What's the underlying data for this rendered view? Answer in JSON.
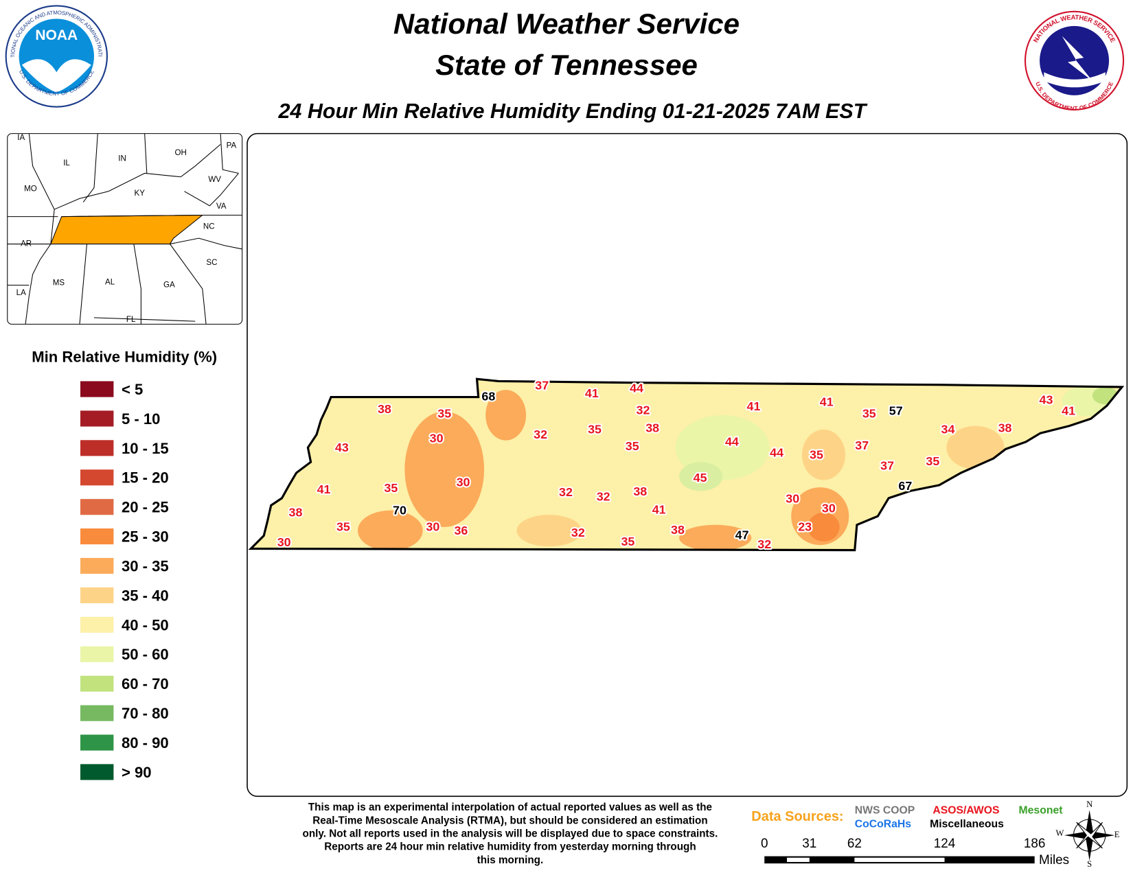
{
  "header": {
    "title_line1": "National Weather Service",
    "title_line2": "State of Tennessee",
    "subtitle": "24 Hour Min Relative Humidity Ending 01-21-2025 7AM EST"
  },
  "logos": {
    "noaa_center": "NOAA",
    "noaa_ring_top": "NATIONAL OCEANIC AND ATMOSPHERIC ADMINISTRATION",
    "noaa_ring_bottom": "U.S. DEPARTMENT OF COMMERCE",
    "nws_ring_top": "NATIONAL WEATHER SERVICE",
    "nws_ring_bottom": "U.S. DEPARTMENT OF COMMERCE"
  },
  "inset_labels": [
    "IA",
    "IL",
    "IN",
    "OH",
    "PA",
    "MO",
    "KY",
    "WV",
    "VA",
    "NC",
    "AR",
    "SC",
    "MS",
    "AL",
    "GA",
    "LA",
    "FL"
  ],
  "legend": {
    "title": "Min Relative Humidity (%)",
    "items": [
      {
        "label": "< 5",
        "color": "#8b0a1e"
      },
      {
        "label": "5 - 10",
        "color": "#a51c24"
      },
      {
        "label": "10 - 15",
        "color": "#be2e28"
      },
      {
        "label": "15 - 20",
        "color": "#d4482f"
      },
      {
        "label": "20 - 25",
        "color": "#e06a44"
      },
      {
        "label": "25 - 30",
        "color": "#f98b3c"
      },
      {
        "label": "30 - 35",
        "color": "#fbab5a"
      },
      {
        "label": "35 - 40",
        "color": "#fdd487"
      },
      {
        "label": "40 - 50",
        "color": "#fdf0a8"
      },
      {
        "label": "50 - 60",
        "color": "#eaf5a8"
      },
      {
        "label": "60 - 70",
        "color": "#c2e27e"
      },
      {
        "label": "70 - 80",
        "color": "#76b961"
      },
      {
        "label": "80 - 90",
        "color": "#2e9447"
      },
      {
        "label": "> 90",
        "color": "#005a2e"
      }
    ]
  },
  "stations": [
    {
      "value": 68,
      "color": "#000000"
    },
    {
      "value": 37,
      "color": "#e8141e"
    },
    {
      "value": 41,
      "color": "#e8141e"
    },
    {
      "value": 44,
      "color": "#e8141e"
    },
    {
      "value": 38,
      "color": "#e8141e"
    },
    {
      "value": 35,
      "color": "#e8141e"
    },
    {
      "value": 32,
      "color": "#e8141e"
    },
    {
      "value": 41,
      "color": "#e8141e"
    },
    {
      "value": 41,
      "color": "#e8141e"
    },
    {
      "value": 35,
      "color": "#e8141e"
    },
    {
      "value": 57,
      "color": "#000000"
    },
    {
      "value": 43,
      "color": "#e8141e"
    },
    {
      "value": 41,
      "color": "#e8141e"
    },
    {
      "value": 30,
      "color": "#e8141e"
    },
    {
      "value": 32,
      "color": "#e8141e"
    },
    {
      "value": 35,
      "color": "#e8141e"
    },
    {
      "value": 38,
      "color": "#e8141e"
    },
    {
      "value": 34,
      "color": "#e8141e"
    },
    {
      "value": 38,
      "color": "#e8141e"
    },
    {
      "value": 43,
      "color": "#e8141e"
    },
    {
      "value": 35,
      "color": "#e8141e"
    },
    {
      "value": 44,
      "color": "#e8141e"
    },
    {
      "value": 44,
      "color": "#e8141e"
    },
    {
      "value": 35,
      "color": "#e8141e"
    },
    {
      "value": 37,
      "color": "#e8141e"
    },
    {
      "value": 37,
      "color": "#e8141e"
    },
    {
      "value": 35,
      "color": "#e8141e"
    },
    {
      "value": 30,
      "color": "#e8141e"
    },
    {
      "value": 45,
      "color": "#e8141e"
    },
    {
      "value": 67,
      "color": "#000000"
    },
    {
      "value": 41,
      "color": "#e8141e"
    },
    {
      "value": 35,
      "color": "#e8141e"
    },
    {
      "value": 32,
      "color": "#e8141e"
    },
    {
      "value": 32,
      "color": "#e8141e"
    },
    {
      "value": 38,
      "color": "#e8141e"
    },
    {
      "value": 30,
      "color": "#e8141e"
    },
    {
      "value": 30,
      "color": "#e8141e"
    },
    {
      "value": 38,
      "color": "#e8141e"
    },
    {
      "value": 70,
      "color": "#000000"
    },
    {
      "value": 41,
      "color": "#e8141e"
    },
    {
      "value": 35,
      "color": "#e8141e"
    },
    {
      "value": 30,
      "color": "#e8141e"
    },
    {
      "value": 36,
      "color": "#e8141e"
    },
    {
      "value": 23,
      "color": "#e8141e"
    },
    {
      "value": 32,
      "color": "#e8141e"
    },
    {
      "value": 38,
      "color": "#e8141e"
    },
    {
      "value": 47,
      "color": "#000000"
    },
    {
      "value": 35,
      "color": "#e8141e"
    },
    {
      "value": 32,
      "color": "#e8141e"
    },
    {
      "value": 30,
      "color": "#e8141e"
    }
  ],
  "footnote": [
    "This map is an experimental interpolation of actual reported values as well as the",
    "Real-Time Mesoscale Analysis (RTMA), but should be considered an estimation",
    "only. Not all reports used in the analysis will be displayed due to space constraints.",
    "Reports are 24 hour min relative humidity from yesterday morning through",
    "this morning."
  ],
  "data_sources": {
    "label": "Data Sources:",
    "items": [
      {
        "text": "NWS COOP",
        "color": "#777777"
      },
      {
        "text": "ASOS/AWOS",
        "color": "#e8141e"
      },
      {
        "text": "Mesonet",
        "color": "#3aa02a"
      },
      {
        "text": "CoCoRaHs",
        "color": "#1a73e8"
      },
      {
        "text": "Miscellaneous",
        "color": "#000000"
      }
    ]
  },
  "scale": {
    "ticks": [
      0,
      31,
      62,
      124,
      186
    ],
    "unit": "Miles"
  },
  "compass": [
    "N",
    "E",
    "S",
    "W"
  ]
}
